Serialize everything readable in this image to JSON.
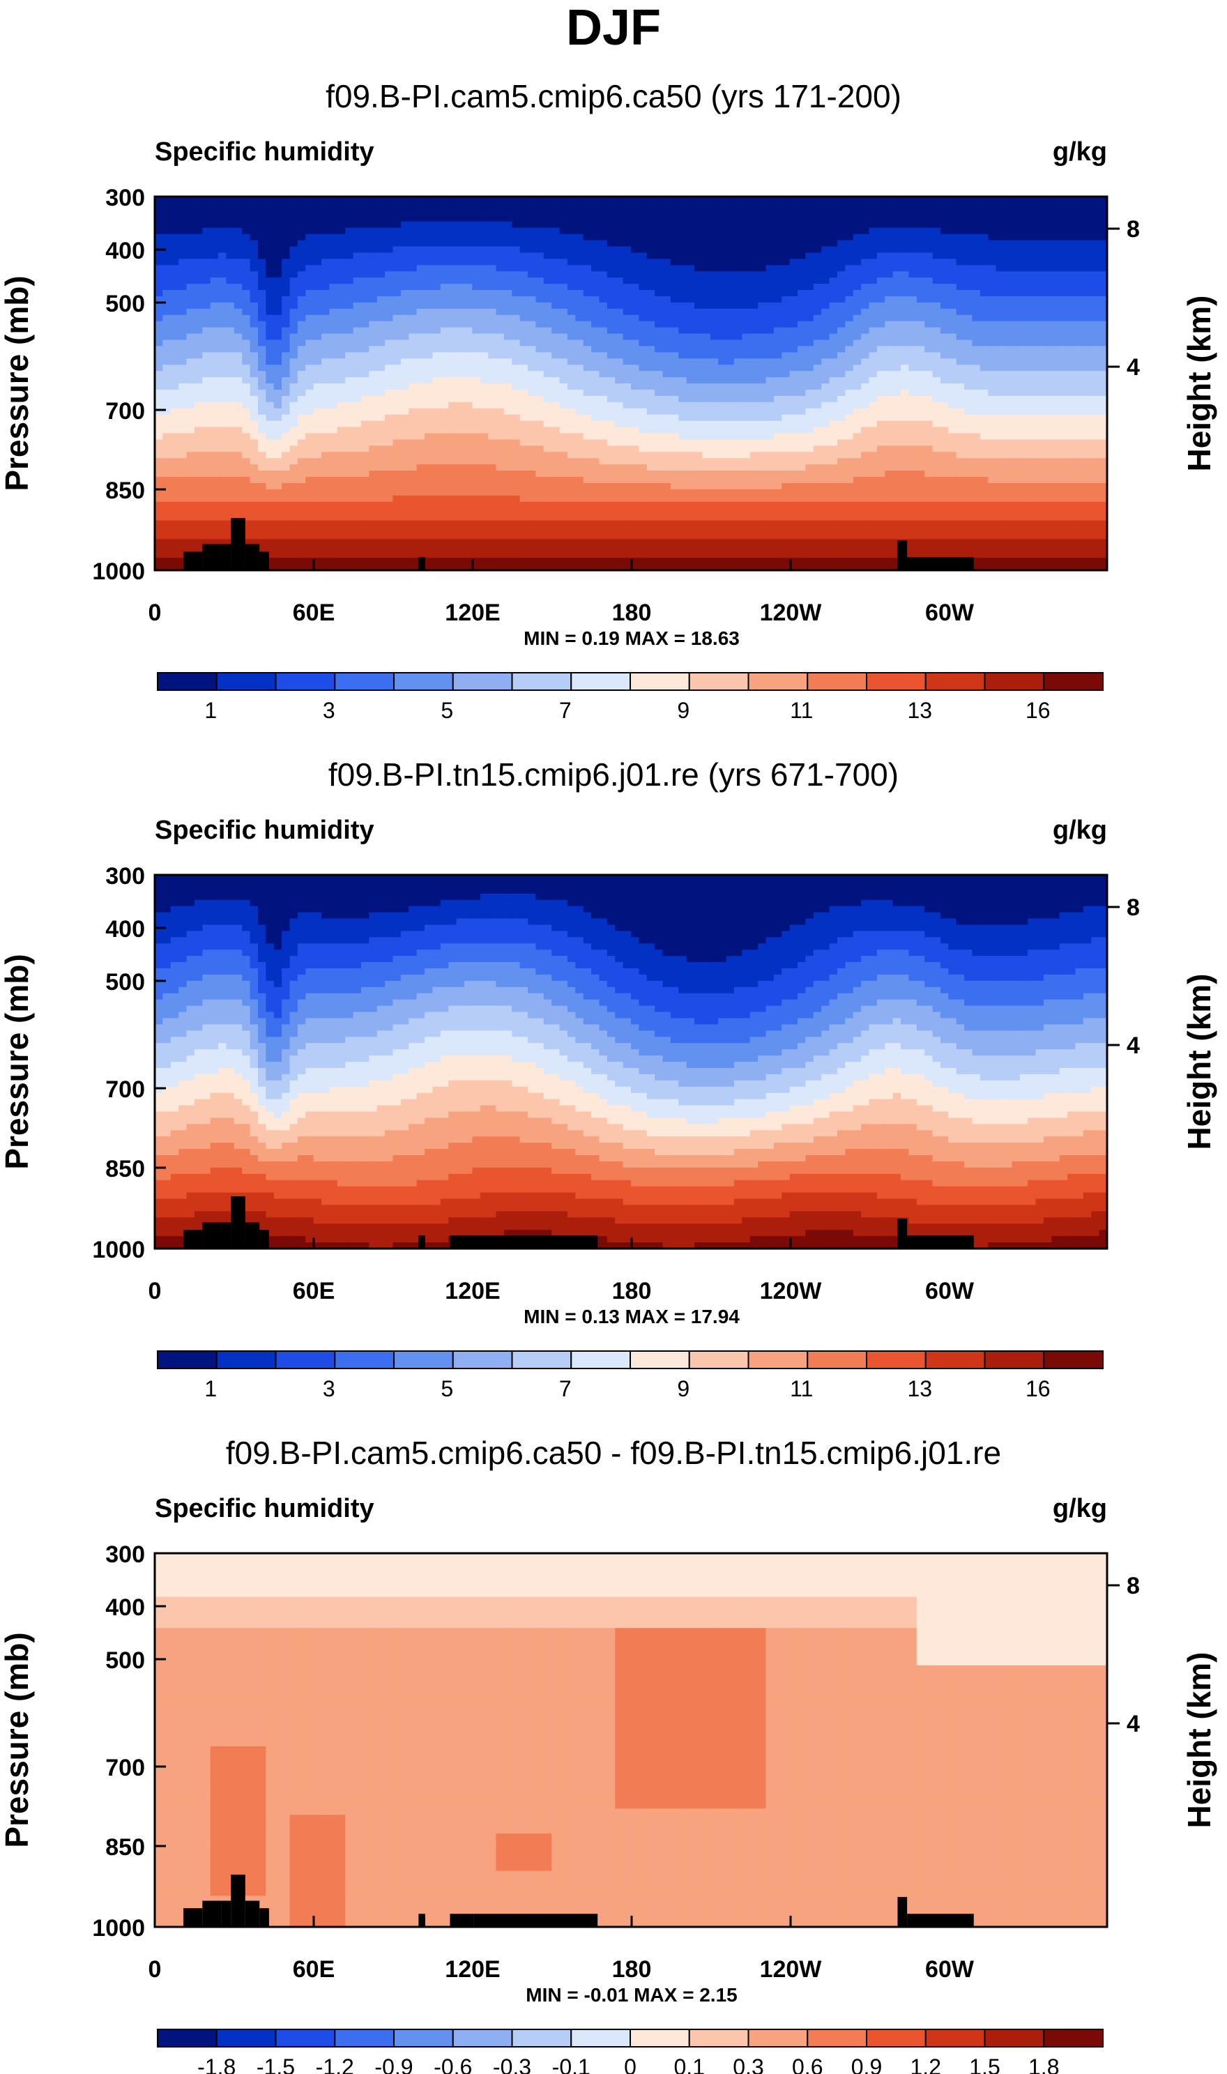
{
  "page_title": "DJF",
  "chart_data": [
    {
      "type": "heatmap",
      "title": "f09.B-PI.cam5.cmip6.ca50 (yrs 171-200)",
      "subtitle_left": "Specific humidity",
      "subtitle_right": "g/kg",
      "ylabel": "Pressure (mb)",
      "ylabel_right": "Height (km)",
      "yticks": [
        "300",
        "400",
        "500",
        "700",
        "850",
        "1000"
      ],
      "yticks_right": [
        "8",
        "4"
      ],
      "xticks": [
        "0",
        "60E",
        "120E",
        "180",
        "120W",
        "60W"
      ],
      "stats": "MIN =   0.19   MAX =  18.63",
      "colorbar_labels": [
        "1",
        "3",
        "5",
        "7",
        "9",
        "11",
        "13",
        "16"
      ],
      "colorbar_colors": [
        "#00137f",
        "#0331c4",
        "#1d4de6",
        "#3c6ef0",
        "#6391f0",
        "#8eb0f3",
        "#b6cdf7",
        "#dbe7fb",
        "#fde8da",
        "#fbc6ac",
        "#f7a37f",
        "#f27d54",
        "#e9552f",
        "#cf3617",
        "#ab1e0b",
        "#7a0a05"
      ],
      "ylim_mb": [
        300,
        1000
      ],
      "xlim_deg": [
        0,
        360
      ],
      "field_description": "mean field, moist near surface decreasing with height"
    },
    {
      "type": "heatmap",
      "title": "f09.B-PI.tn15.cmip6.j01.re (yrs 671-700)",
      "subtitle_left": "Specific humidity",
      "subtitle_right": "g/kg",
      "ylabel": "Pressure (mb)",
      "ylabel_right": "Height (km)",
      "yticks": [
        "300",
        "400",
        "500",
        "700",
        "850",
        "1000"
      ],
      "yticks_right": [
        "8",
        "4"
      ],
      "xticks": [
        "0",
        "60E",
        "120E",
        "180",
        "120W",
        "60W"
      ],
      "stats": "MIN =   0.13   MAX =  17.94",
      "colorbar_labels": [
        "1",
        "3",
        "5",
        "7",
        "9",
        "11",
        "13",
        "16"
      ],
      "colorbar_colors": [
        "#00137f",
        "#0331c4",
        "#1d4de6",
        "#3c6ef0",
        "#6391f0",
        "#8eb0f3",
        "#b6cdf7",
        "#dbe7fb",
        "#fde8da",
        "#fbc6ac",
        "#f7a37f",
        "#f27d54",
        "#e9552f",
        "#cf3617",
        "#ab1e0b",
        "#7a0a05"
      ],
      "ylim_mb": [
        300,
        1000
      ],
      "xlim_deg": [
        0,
        360
      ],
      "field_description": "mean field, moist near surface decreasing with height"
    },
    {
      "type": "heatmap",
      "title": "f09.B-PI.cam5.cmip6.ca50 - f09.B-PI.tn15.cmip6.j01.re",
      "subtitle_left": "Specific humidity",
      "subtitle_right": "g/kg",
      "ylabel": "Pressure (mb)",
      "ylabel_right": "Height (km)",
      "yticks": [
        "300",
        "400",
        "500",
        "700",
        "850",
        "1000"
      ],
      "yticks_right": [
        "8",
        "4"
      ],
      "xticks": [
        "0",
        "60E",
        "120E",
        "180",
        "120W",
        "60W"
      ],
      "stats": "MIN =  -0.01   MAX =   2.15",
      "colorbar_labels": [
        "-1.8",
        "-1.5",
        "-1.2",
        "-0.9",
        "-0.6",
        "-0.3",
        "-0.1",
        "0",
        "0.1",
        "0.3",
        "0.6",
        "0.9",
        "1.2",
        "1.5",
        "1.8"
      ],
      "colorbar_colors": [
        "#00137f",
        "#0331c4",
        "#1d4de6",
        "#3c6ef0",
        "#6391f0",
        "#8eb0f3",
        "#b6cdf7",
        "#dbe7fb",
        "#fde8da",
        "#fbc6ac",
        "#f7a37f",
        "#f27d54",
        "#e9552f",
        "#cf3617",
        "#ab1e0b",
        "#7a0a05"
      ],
      "ylim_mb": [
        300,
        1000
      ],
      "xlim_deg": [
        0,
        360
      ],
      "field_description": "difference field, mostly positive 0.3 to 1.2"
    }
  ],
  "colors": {
    "axis": "#000000",
    "topography": "#000000"
  }
}
